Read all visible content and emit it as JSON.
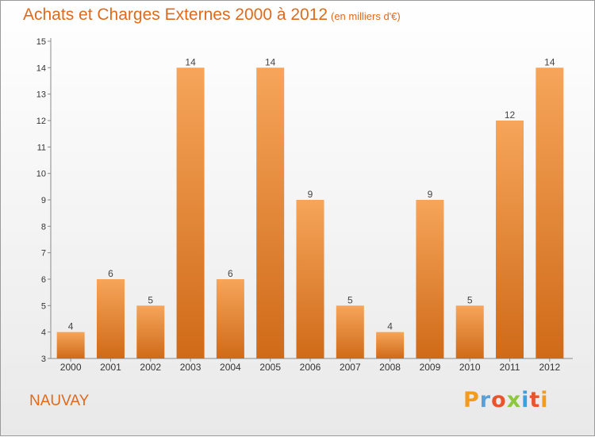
{
  "title": "Achats et Charges Externes 2000 à 2012",
  "subtitle": "(en milliers d'€)",
  "commune": "NAUVAY",
  "logo": "Proxiti",
  "colors": {
    "bar_top": "#f6a55a",
    "bar_bottom": "#cf6a18",
    "text_accent": "#e06a1a",
    "logo_letters": [
      "#f39a1f",
      "#5aa0d8",
      "#e8542b",
      "#8dc63f",
      "#3aa0e0",
      "#e8542b",
      "#f39a1f"
    ]
  },
  "chart_data": {
    "type": "bar",
    "title": "Achats et Charges Externes 2000 à 2012",
    "subtitle": "(en milliers d'€)",
    "categories": [
      "2000",
      "2001",
      "2002",
      "2003",
      "2004",
      "2005",
      "2006",
      "2007",
      "2008",
      "2009",
      "2010",
      "2011",
      "2012"
    ],
    "values": [
      4,
      6,
      5,
      14,
      6,
      14,
      9,
      5,
      4,
      9,
      5,
      12,
      14
    ],
    "ylim": [
      3,
      15
    ],
    "yticks": [
      3,
      4,
      5,
      6,
      7,
      8,
      9,
      10,
      11,
      12,
      13,
      14,
      15
    ],
    "grid": false,
    "data_labels": true
  }
}
